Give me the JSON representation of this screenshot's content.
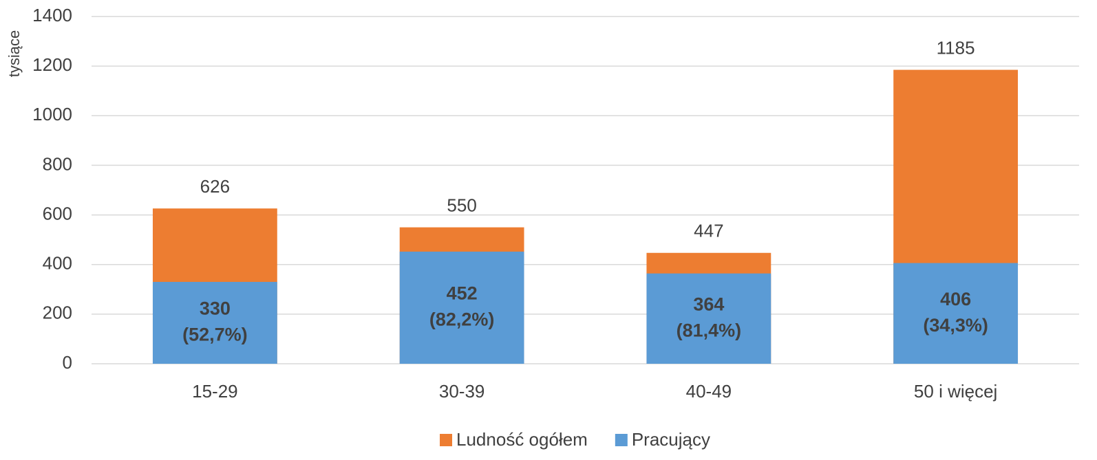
{
  "chart_data": {
    "type": "bar",
    "overlap": true,
    "y_label": "tysiące",
    "categories": [
      "15-29",
      "30-39",
      "40-49",
      "50 i więcej"
    ],
    "series": [
      {
        "name": "Ludność ogółem",
        "color": "#ed7d31",
        "values": [
          626,
          550,
          447,
          1185
        ]
      },
      {
        "name": "Pracujący",
        "color": "#5b9bd5",
        "values": [
          330,
          452,
          364,
          406
        ],
        "value_labels": [
          "330 (52,7%)",
          "452 (82,2%)",
          "364 (81,4%)",
          "406 (34,3%)"
        ]
      }
    ],
    "ylim": [
      0,
      1400
    ],
    "yticks": [
      0,
      200,
      400,
      600,
      800,
      1000,
      1200,
      1400
    ],
    "grid": true,
    "legend": "bottom"
  }
}
